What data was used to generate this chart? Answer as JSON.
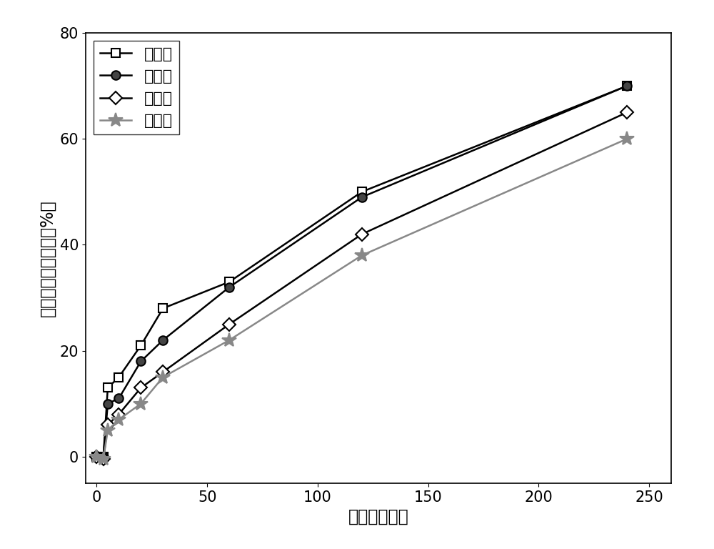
{
  "series": [
    {
      "label": "第一次",
      "x": [
        0,
        3,
        5,
        10,
        20,
        30,
        60,
        120,
        240
      ],
      "y": [
        0,
        0,
        13,
        15,
        21,
        28,
        33,
        50,
        70
      ],
      "color": "#000000",
      "marker": "s",
      "markerfacecolor": "white",
      "markeredgecolor": "#000000",
      "linewidth": 1.8
    },
    {
      "label": "第二次",
      "x": [
        0,
        3,
        5,
        10,
        20,
        30,
        60,
        120,
        240
      ],
      "y": [
        0,
        0,
        10,
        11,
        18,
        22,
        32,
        49,
        70
      ],
      "color": "#000000",
      "marker": "o",
      "markerfacecolor": "#444444",
      "markeredgecolor": "#000000",
      "linewidth": 1.8
    },
    {
      "label": "第三次",
      "x": [
        0,
        3,
        5,
        10,
        20,
        30,
        60,
        120,
        240
      ],
      "y": [
        0,
        -0.5,
        6,
        8,
        13,
        16,
        25,
        42,
        65
      ],
      "color": "#000000",
      "marker": "D",
      "markerfacecolor": "white",
      "markeredgecolor": "#000000",
      "linewidth": 1.8
    },
    {
      "label": "第四次",
      "x": [
        0,
        3,
        5,
        10,
        20,
        30,
        60,
        120,
        240
      ],
      "y": [
        0,
        -0.5,
        5,
        7,
        10,
        15,
        22,
        38,
        60
      ],
      "color": "#888888",
      "marker": "*",
      "markerfacecolor": "#888888",
      "markeredgecolor": "#888888",
      "linewidth": 1.8
    }
  ],
  "xlabel": "时间（分钟）",
  "ylabel": "磷酸三丁酯去除率（%）",
  "xlim": [
    -5,
    260
  ],
  "ylim": [
    -5,
    80
  ],
  "xticks": [
    0,
    50,
    100,
    150,
    200,
    250
  ],
  "yticks": [
    0,
    20,
    40,
    60,
    80
  ],
  "background_color": "#ffffff",
  "legend_loc": "upper left",
  "fontsize_label": 17,
  "fontsize_tick": 15,
  "fontsize_legend": 16,
  "marker_size": 9,
  "star_size": 15
}
